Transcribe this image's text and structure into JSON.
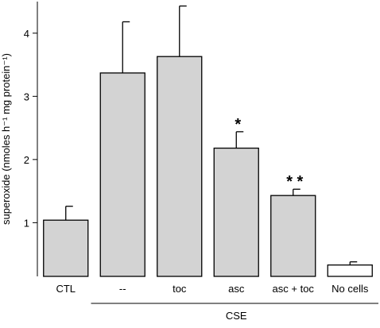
{
  "chart_data": {
    "type": "bar",
    "categories": [
      "CTL",
      "--",
      "toc",
      "asc",
      "asc + toc",
      "No cells"
    ],
    "values": [
      1.04,
      3.37,
      3.63,
      2.18,
      1.43,
      0.33
    ],
    "errors": [
      0.22,
      0.81,
      0.8,
      0.26,
      0.1,
      0.05
    ],
    "annotations": [
      "",
      "",
      "",
      "*",
      "* *",
      ""
    ],
    "ylabel": "superoxide (nmoles h⁻¹ mg protein⁻¹)",
    "ylim": [
      0.15,
      4.5
    ],
    "yticks": [
      1,
      2,
      3,
      4
    ],
    "group_label": "CSE",
    "group_categories": [
      "--",
      "toc",
      "asc",
      "asc + toc",
      "No cells"
    ],
    "colors": {
      "bar_fill": "#d3d3d3",
      "bar_fill_nocells": "#ffffff",
      "bar_stroke": "#000000"
    }
  }
}
